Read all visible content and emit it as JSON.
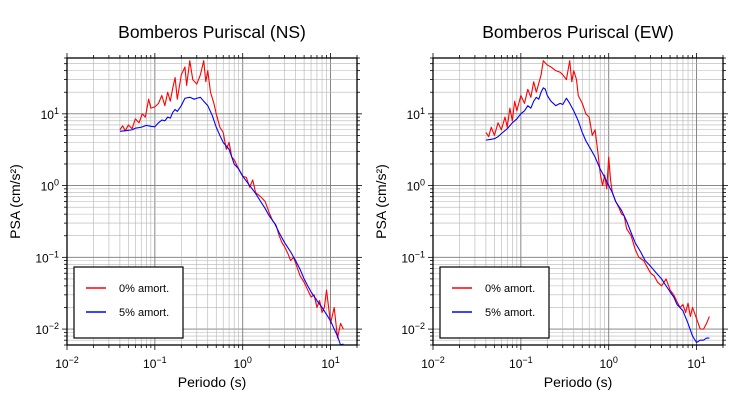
{
  "chart_data": [
    {
      "type": "line",
      "title": "Bomberos Puriscal (NS)",
      "xlabel": "Periodo (s)",
      "ylabel": "PSA (cm/s²)",
      "xscale": "log",
      "yscale": "log",
      "xlim": [
        0.01,
        20
      ],
      "ylim": [
        0.006,
        60
      ],
      "xticks": [
        {
          "v": 0.01,
          "m": "10",
          "e": "−2"
        },
        {
          "v": 0.1,
          "m": "10",
          "e": "−1"
        },
        {
          "v": 1,
          "m": "10",
          "e": "0"
        },
        {
          "v": 10,
          "m": "10",
          "e": "1"
        }
      ],
      "yticks": [
        {
          "v": 0.01,
          "m": "10",
          "e": "−2"
        },
        {
          "v": 0.1,
          "m": "10",
          "e": "−1"
        },
        {
          "v": 1,
          "m": "10",
          "e": "0"
        },
        {
          "v": 10,
          "m": "10",
          "e": "1"
        }
      ],
      "grid": true,
      "legend_position": "bottom-left",
      "series": [
        {
          "name": "0% amort.",
          "color": "#ff0000",
          "points": [
            [
              0.04,
              6.0
            ],
            [
              0.043,
              6.8
            ],
            [
              0.046,
              5.8
            ],
            [
              0.05,
              7.0
            ],
            [
              0.055,
              6.2
            ],
            [
              0.06,
              8.5
            ],
            [
              0.066,
              7.5
            ],
            [
              0.072,
              10.0
            ],
            [
              0.078,
              9.0
            ],
            [
              0.085,
              16.0
            ],
            [
              0.09,
              12.0
            ],
            [
              0.1,
              12.5
            ],
            [
              0.11,
              14.0
            ],
            [
              0.12,
              18.0
            ],
            [
              0.13,
              13.0
            ],
            [
              0.14,
              20.0
            ],
            [
              0.15,
              15.0
            ],
            [
              0.16,
              23.0
            ],
            [
              0.17,
              32.0
            ],
            [
              0.18,
              16.0
            ],
            [
              0.2,
              35.0
            ],
            [
              0.22,
              45.0
            ],
            [
              0.23,
              25.0
            ],
            [
              0.25,
              55.0
            ],
            [
              0.27,
              30.0
            ],
            [
              0.3,
              26.0
            ],
            [
              0.33,
              35.0
            ],
            [
              0.36,
              55.0
            ],
            [
              0.38,
              28.0
            ],
            [
              0.4,
              40.0
            ],
            [
              0.43,
              20.0
            ],
            [
              0.47,
              14.0
            ],
            [
              0.5,
              10.0
            ],
            [
              0.55,
              6.5
            ],
            [
              0.6,
              5.5
            ],
            [
              0.65,
              3.2
            ],
            [
              0.7,
              4.0
            ],
            [
              0.75,
              2.5
            ],
            [
              0.8,
              2.3
            ],
            [
              0.9,
              1.7
            ],
            [
              1.0,
              1.35
            ],
            [
              1.1,
              1.3
            ],
            [
              1.2,
              0.95
            ],
            [
              1.3,
              1.2
            ],
            [
              1.4,
              0.8
            ],
            [
              1.6,
              0.7
            ],
            [
              1.8,
              0.6
            ],
            [
              2.0,
              0.42
            ],
            [
              2.2,
              0.32
            ],
            [
              2.4,
              0.28
            ],
            [
              2.6,
              0.2
            ],
            [
              2.8,
              0.16
            ],
            [
              3.0,
              0.14
            ],
            [
              3.3,
              0.11
            ],
            [
              3.5,
              0.09
            ],
            [
              3.8,
              0.1
            ],
            [
              4.2,
              0.07
            ],
            [
              4.5,
              0.055
            ],
            [
              5.0,
              0.045
            ],
            [
              5.5,
              0.035
            ],
            [
              6.0,
              0.028
            ],
            [
              6.5,
              0.03
            ],
            [
              7.0,
              0.02
            ],
            [
              7.5,
              0.025
            ],
            [
              8.0,
              0.017
            ],
            [
              8.5,
              0.02
            ],
            [
              9.0,
              0.035
            ],
            [
              10.0,
              0.012
            ],
            [
              11.0,
              0.02
            ],
            [
              12.0,
              0.0075
            ],
            [
              13.0,
              0.012
            ],
            [
              14.0,
              0.01
            ]
          ]
        },
        {
          "name": "5% amort.",
          "color": "#0000ff",
          "points": [
            [
              0.04,
              5.7
            ],
            [
              0.045,
              5.8
            ],
            [
              0.05,
              5.9
            ],
            [
              0.055,
              6.0
            ],
            [
              0.06,
              6.3
            ],
            [
              0.07,
              6.5
            ],
            [
              0.08,
              6.9
            ],
            [
              0.09,
              6.7
            ],
            [
              0.1,
              6.6
            ],
            [
              0.11,
              7.5
            ],
            [
              0.12,
              8.2
            ],
            [
              0.13,
              8.0
            ],
            [
              0.14,
              9.0
            ],
            [
              0.15,
              8.7
            ],
            [
              0.16,
              10.5
            ],
            [
              0.17,
              11.5
            ],
            [
              0.18,
              10.8
            ],
            [
              0.2,
              13.0
            ],
            [
              0.22,
              16.5
            ],
            [
              0.25,
              17.0
            ],
            [
              0.28,
              16.0
            ],
            [
              0.3,
              16.5
            ],
            [
              0.33,
              17.0
            ],
            [
              0.36,
              15.0
            ],
            [
              0.4,
              13.0
            ],
            [
              0.45,
              9.5
            ],
            [
              0.5,
              6.5
            ],
            [
              0.55,
              5.0
            ],
            [
              0.6,
              4.0
            ],
            [
              0.7,
              3.2
            ],
            [
              0.8,
              2.0
            ],
            [
              0.9,
              1.7
            ],
            [
              1.0,
              1.35
            ],
            [
              1.2,
              1.0
            ],
            [
              1.4,
              0.78
            ],
            [
              1.6,
              0.6
            ],
            [
              1.8,
              0.48
            ],
            [
              2.0,
              0.38
            ],
            [
              2.3,
              0.3
            ],
            [
              2.6,
              0.22
            ],
            [
              3.0,
              0.16
            ],
            [
              3.5,
              0.12
            ],
            [
              4.0,
              0.09
            ],
            [
              4.5,
              0.068
            ],
            [
              5.0,
              0.05
            ],
            [
              5.5,
              0.04
            ],
            [
              6.0,
              0.033
            ],
            [
              7.0,
              0.025
            ],
            [
              8.0,
              0.02
            ],
            [
              9.0,
              0.016
            ],
            [
              10.0,
              0.013
            ],
            [
              11.0,
              0.01
            ],
            [
              12.0,
              0.008
            ],
            [
              13.0,
              0.006
            ],
            [
              14.0,
              0.0062
            ]
          ]
        }
      ]
    },
    {
      "type": "line",
      "title": "Bomberos Puriscal (EW)",
      "xlabel": "Periodo (s)",
      "ylabel": "PSA (cm/s²)",
      "xscale": "log",
      "yscale": "log",
      "xlim": [
        0.01,
        20
      ],
      "ylim": [
        0.006,
        60
      ],
      "xticks": [
        {
          "v": 0.01,
          "m": "10",
          "e": "−2"
        },
        {
          "v": 0.1,
          "m": "10",
          "e": "−1"
        },
        {
          "v": 1,
          "m": "10",
          "e": "0"
        },
        {
          "v": 10,
          "m": "10",
          "e": "1"
        }
      ],
      "yticks": [
        {
          "v": 0.01,
          "m": "10",
          "e": "−2"
        },
        {
          "v": 0.1,
          "m": "10",
          "e": "−1"
        },
        {
          "v": 1,
          "m": "10",
          "e": "0"
        },
        {
          "v": 10,
          "m": "10",
          "e": "1"
        }
      ],
      "grid": true,
      "legend_position": "bottom-left",
      "series": [
        {
          "name": "0% amort.",
          "color": "#ff0000",
          "points": [
            [
              0.04,
              5.5
            ],
            [
              0.043,
              4.8
            ],
            [
              0.046,
              6.5
            ],
            [
              0.05,
              5.0
            ],
            [
              0.055,
              7.5
            ],
            [
              0.06,
              6.0
            ],
            [
              0.066,
              9.0
            ],
            [
              0.07,
              6.5
            ],
            [
              0.075,
              12.0
            ],
            [
              0.08,
              8.0
            ],
            [
              0.085,
              15.0
            ],
            [
              0.09,
              11.0
            ],
            [
              0.1,
              18.0
            ],
            [
              0.11,
              14.0
            ],
            [
              0.12,
              22.0
            ],
            [
              0.13,
              17.0
            ],
            [
              0.14,
              28.0
            ],
            [
              0.15,
              20.0
            ],
            [
              0.17,
              35.0
            ],
            [
              0.18,
              55.0
            ],
            [
              0.2,
              48.0
            ],
            [
              0.22,
              45.0
            ],
            [
              0.25,
              40.0
            ],
            [
              0.28,
              38.0
            ],
            [
              0.3,
              35.0
            ],
            [
              0.33,
              30.0
            ],
            [
              0.36,
              55.0
            ],
            [
              0.38,
              28.0
            ],
            [
              0.4,
              40.0
            ],
            [
              0.43,
              30.0
            ],
            [
              0.45,
              18.0
            ],
            [
              0.5,
              14.0
            ],
            [
              0.55,
              10.0
            ],
            [
              0.6,
              9.0
            ],
            [
              0.65,
              5.0
            ],
            [
              0.7,
              6.0
            ],
            [
              0.75,
              3.0
            ],
            [
              0.8,
              1.5
            ],
            [
              0.85,
              1.0
            ],
            [
              0.9,
              1.4
            ],
            [
              0.95,
              0.9
            ],
            [
              1.0,
              2.5
            ],
            [
              1.05,
              1.2
            ],
            [
              1.1,
              0.8
            ],
            [
              1.2,
              0.6
            ],
            [
              1.3,
              0.5
            ],
            [
              1.4,
              0.4
            ],
            [
              1.5,
              0.38
            ],
            [
              1.6,
              0.25
            ],
            [
              1.8,
              0.2
            ],
            [
              2.0,
              0.13
            ],
            [
              2.2,
              0.1
            ],
            [
              2.5,
              0.09
            ],
            [
              2.8,
              0.07
            ],
            [
              3.0,
              0.06
            ],
            [
              3.3,
              0.055
            ],
            [
              3.6,
              0.045
            ],
            [
              4.0,
              0.04
            ],
            [
              4.5,
              0.05
            ],
            [
              5.0,
              0.035
            ],
            [
              5.5,
              0.03
            ],
            [
              6.0,
              0.024
            ],
            [
              6.5,
              0.02
            ],
            [
              7.0,
              0.022
            ],
            [
              7.5,
              0.017
            ],
            [
              8.0,
              0.023
            ],
            [
              8.5,
              0.015
            ],
            [
              9.0,
              0.02
            ],
            [
              10.0,
              0.014
            ],
            [
              11.0,
              0.01
            ],
            [
              12.0,
              0.01
            ],
            [
              13.0,
              0.012
            ],
            [
              14.0,
              0.015
            ]
          ]
        },
        {
          "name": "5% amort.",
          "color": "#0000ff",
          "points": [
            [
              0.04,
              4.3
            ],
            [
              0.045,
              4.4
            ],
            [
              0.05,
              4.5
            ],
            [
              0.055,
              4.8
            ],
            [
              0.06,
              5.3
            ],
            [
              0.07,
              6.2
            ],
            [
              0.08,
              7.5
            ],
            [
              0.09,
              8.5
            ],
            [
              0.1,
              10.0
            ],
            [
              0.11,
              11.0
            ],
            [
              0.12,
              13.0
            ],
            [
              0.13,
              12.0
            ],
            [
              0.14,
              15.0
            ],
            [
              0.15,
              17.0
            ],
            [
              0.16,
              16.0
            ],
            [
              0.17,
              20.0
            ],
            [
              0.18,
              23.0
            ],
            [
              0.19,
              22.0
            ],
            [
              0.2,
              18.0
            ],
            [
              0.22,
              15.0
            ],
            [
              0.25,
              13.0
            ],
            [
              0.28,
              14.0
            ],
            [
              0.3,
              13.5
            ],
            [
              0.33,
              16.5
            ],
            [
              0.36,
              14.0
            ],
            [
              0.4,
              11.0
            ],
            [
              0.45,
              8.0
            ],
            [
              0.5,
              5.5
            ],
            [
              0.55,
              4.2
            ],
            [
              0.6,
              3.5
            ],
            [
              0.7,
              2.5
            ],
            [
              0.8,
              1.7
            ],
            [
              0.9,
              1.3
            ],
            [
              1.0,
              1.0
            ],
            [
              1.1,
              0.8
            ],
            [
              1.2,
              0.6
            ],
            [
              1.4,
              0.45
            ],
            [
              1.6,
              0.32
            ],
            [
              1.8,
              0.22
            ],
            [
              2.0,
              0.16
            ],
            [
              2.3,
              0.12
            ],
            [
              2.6,
              0.09
            ],
            [
              3.0,
              0.075
            ],
            [
              3.5,
              0.06
            ],
            [
              4.0,
              0.05
            ],
            [
              4.5,
              0.04
            ],
            [
              5.0,
              0.033
            ],
            [
              5.5,
              0.028
            ],
            [
              6.0,
              0.022
            ],
            [
              7.0,
              0.018
            ],
            [
              8.0,
              0.012
            ],
            [
              9.0,
              0.008
            ],
            [
              10.0,
              0.0065
            ],
            [
              11.0,
              0.007
            ],
            [
              12.0,
              0.007
            ],
            [
              13.0,
              0.0075
            ],
            [
              14.0,
              0.0075
            ]
          ]
        }
      ]
    }
  ]
}
